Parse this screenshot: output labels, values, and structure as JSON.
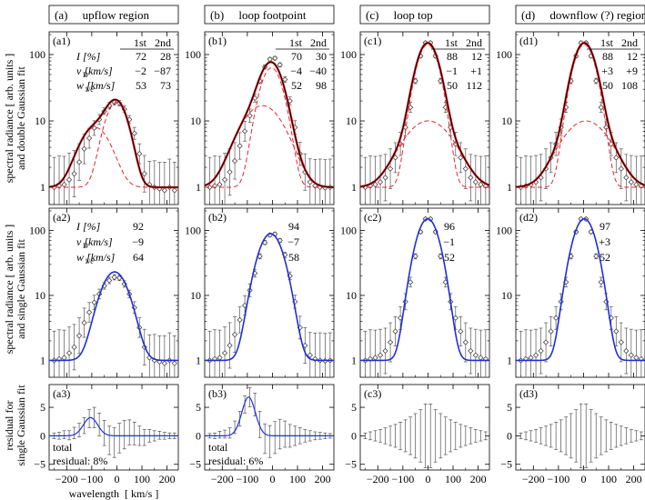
{
  "header": {
    "columns": [
      "(a)     upflow region",
      "(b)     loop footpoint",
      "(c)     loop top",
      "(d)     downflow (?) region"
    ]
  },
  "y_axis_labels": {
    "row1": [
      "spectral radiance  [ arb. units ]",
      "and double Gaussian fit"
    ],
    "row2": [
      "spectral radiance  [ arb. units ]",
      "and single Gaussian fit"
    ],
    "row3": [
      "residual for",
      "single Gaussian fit"
    ]
  },
  "x_axis_label": "wavelength  [ km/s ]",
  "panel_labels": {
    "row1": [
      "(a1)",
      "(b1)",
      "(c1)",
      "(d1)"
    ],
    "row2": [
      "(a2)",
      "(b2)",
      "(c2)",
      "(d2)"
    ],
    "row3": [
      "(a3)",
      "(b3)",
      "(c3)",
      "(d3)"
    ]
  },
  "table_row_labels": {
    "I": "I  [%]",
    "vD": "v    [km/s]",
    "vD_sub": "D",
    "w": "w     [km/s]",
    "w_sub": "1/e"
  },
  "double_fit": [
    {
      "col1": "1st",
      "col2": "2nd",
      "I": [
        "72",
        "28"
      ],
      "vD": [
        "−2",
        "−87"
      ],
      "w": [
        "53",
        "73"
      ]
    },
    {
      "col1": "1st",
      "col2": "2nd",
      "I": [
        "70",
        "30"
      ],
      "vD": [
        "−4",
        "−40"
      ],
      "w": [
        "52",
        "98"
      ]
    },
    {
      "col1": "1st",
      "col2": "2nd",
      "I": [
        "88",
        "12"
      ],
      "vD": [
        "−1",
        "+1"
      ],
      "w": [
        "50",
        "112"
      ]
    },
    {
      "col1": "1st",
      "col2": "2nd",
      "I": [
        "88",
        "12"
      ],
      "vD": [
        "+3",
        "+9"
      ],
      "w": [
        "50",
        "108"
      ]
    }
  ],
  "single_fit": [
    {
      "I": "92",
      "vD": "−9",
      "w": "64"
    },
    {
      "I": "94",
      "vD": "−7",
      "w": "58"
    },
    {
      "I": "96",
      "vD": "−1",
      "w": "52"
    },
    {
      "I": "97",
      "vD": "+3",
      "w": "52"
    }
  ],
  "residual_text": {
    "line1": "total",
    "a": "residual:  8%",
    "b": "residual:  6%"
  },
  "chart_data": {
    "type": "line",
    "x_range": [
      -270,
      245
    ],
    "x_ticks": [
      "−200",
      "−100",
      "0",
      "100",
      "200"
    ],
    "x_tick_values": [
      -200,
      -100,
      0,
      100,
      200
    ],
    "rows": [
      {
        "scale": "log",
        "ylim": [
          0.55,
          220
        ],
        "y_ticks": [
          "1",
          "10",
          "100"
        ],
        "y_tick_values": [
          1,
          10,
          100
        ]
      },
      {
        "scale": "log",
        "ylim": [
          0.55,
          220
        ],
        "y_ticks": [
          "1",
          "10",
          "100"
        ],
        "y_tick_values": [
          1,
          10,
          100
        ]
      },
      {
        "scale": "linear",
        "ylim": [
          -6,
          9
        ],
        "y_ticks": [
          "−5",
          "0",
          "5"
        ],
        "y_tick_values": [
          -5,
          0,
          5
        ]
      }
    ],
    "colors": {
      "data": "#555555",
      "double_fit": "#e8232a",
      "single_fit": "#1f2fd6",
      "total": "#000000"
    },
    "x_samples": [
      -250,
      -230,
      -210,
      -190,
      -170,
      -150,
      -130,
      -110,
      -90,
      -70,
      -50,
      -30,
      -10,
      10,
      30,
      50,
      70,
      90,
      110,
      130,
      150,
      170,
      190,
      210,
      230
    ],
    "panels": [
      {
        "data": [
          1.0,
          1.05,
          1.1,
          1.3,
          1.6,
          2.4,
          3.8,
          5.5,
          7.8,
          10.5,
          14,
          17,
          19,
          18.5,
          15,
          10.5,
          6.5,
          3.2,
          1.6,
          1.1,
          1.0,
          0.95,
          0.9,
          1.0,
          0.9
        ],
        "err": [
          0.9,
          0.9,
          0.85,
          0.8,
          0.7,
          0.55,
          0.45,
          0.3,
          0.22,
          0.15,
          0.1,
          0.1,
          0.08,
          0.08,
          0.1,
          0.12,
          0.18,
          0.3,
          0.55,
          0.7,
          0.8,
          0.8,
          0.85,
          0.85,
          0.85
        ],
        "double": {
          "bg": 1.0,
          "comps": [
            {
              "a": 18,
              "v": -2,
              "w": 53
            },
            {
              "a": 7,
              "v": -87,
              "w": 73
            }
          ]
        },
        "single": {
          "bg": 1.0,
          "a": 22,
          "v": -9,
          "w": 64
        },
        "residual": [
          0,
          0,
          0.2,
          0.1,
          0.5,
          1.0,
          1.8,
          3.0,
          3.2,
          2.0,
          0.5,
          -0.8,
          -1.2,
          -0.4,
          0.2,
          0.6,
          0.4,
          0,
          -0.3,
          0,
          0,
          0.1,
          0,
          0,
          0
        ],
        "residual_err": [
          0.5,
          0.6,
          0.7,
          0.8,
          1.0,
          1.2,
          1.4,
          1.6,
          1.8,
          2.0,
          2.2,
          2.5,
          2.6,
          2.6,
          2.5,
          2.2,
          2.0,
          1.7,
          1.4,
          1.1,
          0.9,
          0.7,
          0.6,
          0.5,
          0.5
        ],
        "residual_fit": {
          "a": 3.2,
          "v": -105,
          "w": 40
        }
      },
      {
        "data": [
          1.0,
          1.05,
          1.1,
          1.3,
          1.7,
          2.5,
          4.2,
          7,
          12,
          22,
          40,
          65,
          85,
          88,
          70,
          42,
          20,
          8,
          3.2,
          1.7,
          1.2,
          1.05,
          1.0,
          0.98,
          1.0
        ],
        "err": [
          0.9,
          0.9,
          0.85,
          0.8,
          0.7,
          0.55,
          0.4,
          0.3,
          0.2,
          0.12,
          0.08,
          0.06,
          0.05,
          0.05,
          0.06,
          0.08,
          0.12,
          0.2,
          0.35,
          0.55,
          0.7,
          0.8,
          0.85,
          0.85,
          0.85
        ],
        "double": {
          "bg": 1.0,
          "comps": [
            {
              "a": 62,
              "v": -4,
              "w": 52
            },
            {
              "a": 16,
              "v": -40,
              "w": 98
            }
          ]
        },
        "single": {
          "bg": 1.0,
          "a": 88,
          "v": -7,
          "w": 58
        },
        "residual": [
          0,
          0,
          0.2,
          0.3,
          0.5,
          1.5,
          3.0,
          5.5,
          6.8,
          5.5,
          2.0,
          -0.5,
          -1.0,
          -0.3,
          0.3,
          0.3,
          0,
          0,
          0,
          0,
          0,
          0,
          0,
          0,
          0
        ],
        "residual_err": [
          0.4,
          0.5,
          0.6,
          0.7,
          0.9,
          1.1,
          1.3,
          1.5,
          1.7,
          2.0,
          2.3,
          2.6,
          2.8,
          2.8,
          2.6,
          2.3,
          2.0,
          1.7,
          1.4,
          1.1,
          0.9,
          0.7,
          0.6,
          0.5,
          0.4
        ],
        "residual_fit": {
          "a": 6.8,
          "v": -95,
          "w": 38
        }
      },
      {
        "data": [
          1.0,
          1.05,
          1.1,
          1.2,
          1.4,
          1.9,
          2.8,
          4.5,
          8,
          16,
          40,
          95,
          150,
          150,
          95,
          40,
          16,
          8,
          4.5,
          2.8,
          1.9,
          1.4,
          1.2,
          1.1,
          1.05
        ],
        "err": [
          0.9,
          0.9,
          0.85,
          0.8,
          0.7,
          0.6,
          0.45,
          0.35,
          0.25,
          0.15,
          0.08,
          0.05,
          0.04,
          0.04,
          0.05,
          0.08,
          0.15,
          0.25,
          0.35,
          0.45,
          0.6,
          0.7,
          0.8,
          0.85,
          0.9
        ],
        "double": {
          "bg": 1.0,
          "comps": [
            {
              "a": 140,
              "v": -1,
              "w": 50
            },
            {
              "a": 9,
              "v": 1,
              "w": 112
            }
          ]
        },
        "single": {
          "bg": 1.0,
          "a": 150,
          "v": -1,
          "w": 52
        },
        "residual": [
          0,
          0,
          0,
          0,
          0,
          0,
          0,
          0,
          0,
          0,
          0,
          0,
          0,
          0,
          0,
          0,
          0,
          0,
          0,
          0,
          0,
          0,
          0,
          0,
          0
        ],
        "residual_err": [
          0.5,
          0.7,
          0.9,
          1.1,
          1.4,
          1.7,
          2.0,
          2.4,
          2.8,
          3.3,
          3.9,
          4.6,
          5.6,
          5.6,
          4.6,
          3.9,
          3.3,
          2.8,
          2.4,
          2.0,
          1.7,
          1.4,
          1.1,
          0.9,
          0.7
        ]
      },
      {
        "data": [
          1.0,
          1.05,
          1.1,
          1.2,
          1.4,
          1.9,
          2.8,
          4.5,
          8,
          16,
          40,
          95,
          150,
          150,
          95,
          40,
          16,
          8,
          4.5,
          2.8,
          1.9,
          1.4,
          1.2,
          1.1,
          1.05
        ],
        "err": [
          0.9,
          0.9,
          0.85,
          0.8,
          0.7,
          0.6,
          0.45,
          0.35,
          0.25,
          0.15,
          0.08,
          0.05,
          0.04,
          0.04,
          0.05,
          0.08,
          0.15,
          0.25,
          0.35,
          0.45,
          0.6,
          0.7,
          0.8,
          0.85,
          0.9
        ],
        "double": {
          "bg": 1.0,
          "comps": [
            {
              "a": 140,
              "v": 3,
              "w": 50
            },
            {
              "a": 9,
              "v": 9,
              "w": 108
            }
          ]
        },
        "single": {
          "bg": 1.0,
          "a": 150,
          "v": 3,
          "w": 52
        },
        "residual": [
          0,
          0,
          0,
          0,
          0,
          0,
          0,
          0,
          0,
          0,
          0,
          0,
          0,
          0,
          0,
          0,
          0,
          0,
          0,
          0,
          0,
          0,
          0,
          0,
          0
        ],
        "residual_err": [
          0.5,
          0.7,
          0.9,
          1.1,
          1.4,
          1.7,
          2.0,
          2.4,
          2.8,
          3.3,
          3.9,
          4.6,
          5.6,
          5.6,
          4.6,
          3.9,
          3.3,
          2.8,
          2.4,
          2.0,
          1.7,
          1.4,
          1.1,
          0.9,
          0.7
        ]
      }
    ]
  }
}
